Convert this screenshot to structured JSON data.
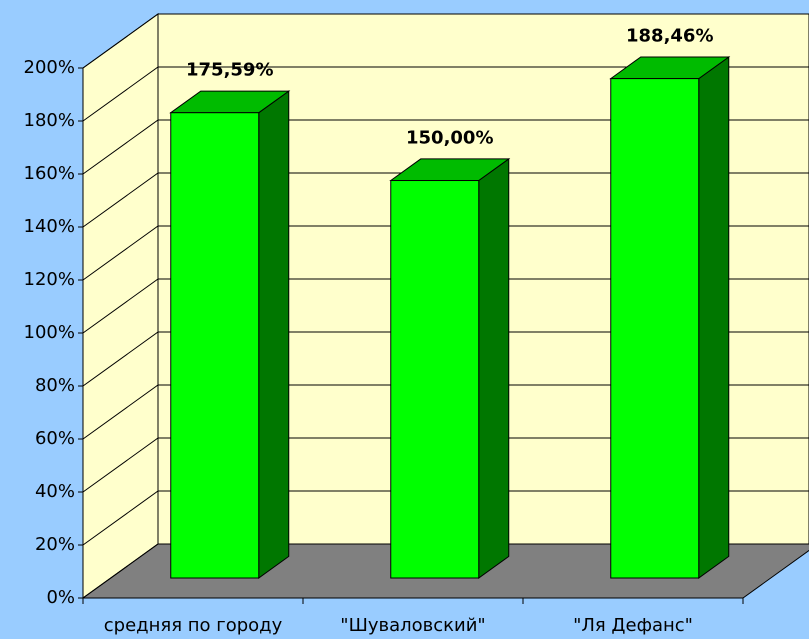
{
  "chart_data": {
    "type": "bar3d",
    "categories": [
      "средняя по городу",
      "\"Шуваловский\"",
      "\"Ля Дефанс\""
    ],
    "values": [
      175.59,
      150.0,
      188.46
    ],
    "value_labels": [
      "175,59%",
      "150,00%",
      "188,46%"
    ],
    "color": "#00ff00",
    "ylim": [
      0,
      200
    ],
    "yticks": [
      {
        "value": 0,
        "label": "0%"
      },
      {
        "value": 20,
        "label": "20%"
      },
      {
        "value": 40,
        "label": "40%"
      },
      {
        "value": 60,
        "label": "60%"
      },
      {
        "value": 80,
        "label": "80%"
      },
      {
        "value": 100,
        "label": "100%"
      },
      {
        "value": 120,
        "label": "120%"
      },
      {
        "value": 140,
        "label": "140%"
      },
      {
        "value": 160,
        "label": "160%"
      },
      {
        "value": 180,
        "label": "180%"
      },
      {
        "value": 200,
        "label": "200%"
      }
    ],
    "grid": true
  }
}
